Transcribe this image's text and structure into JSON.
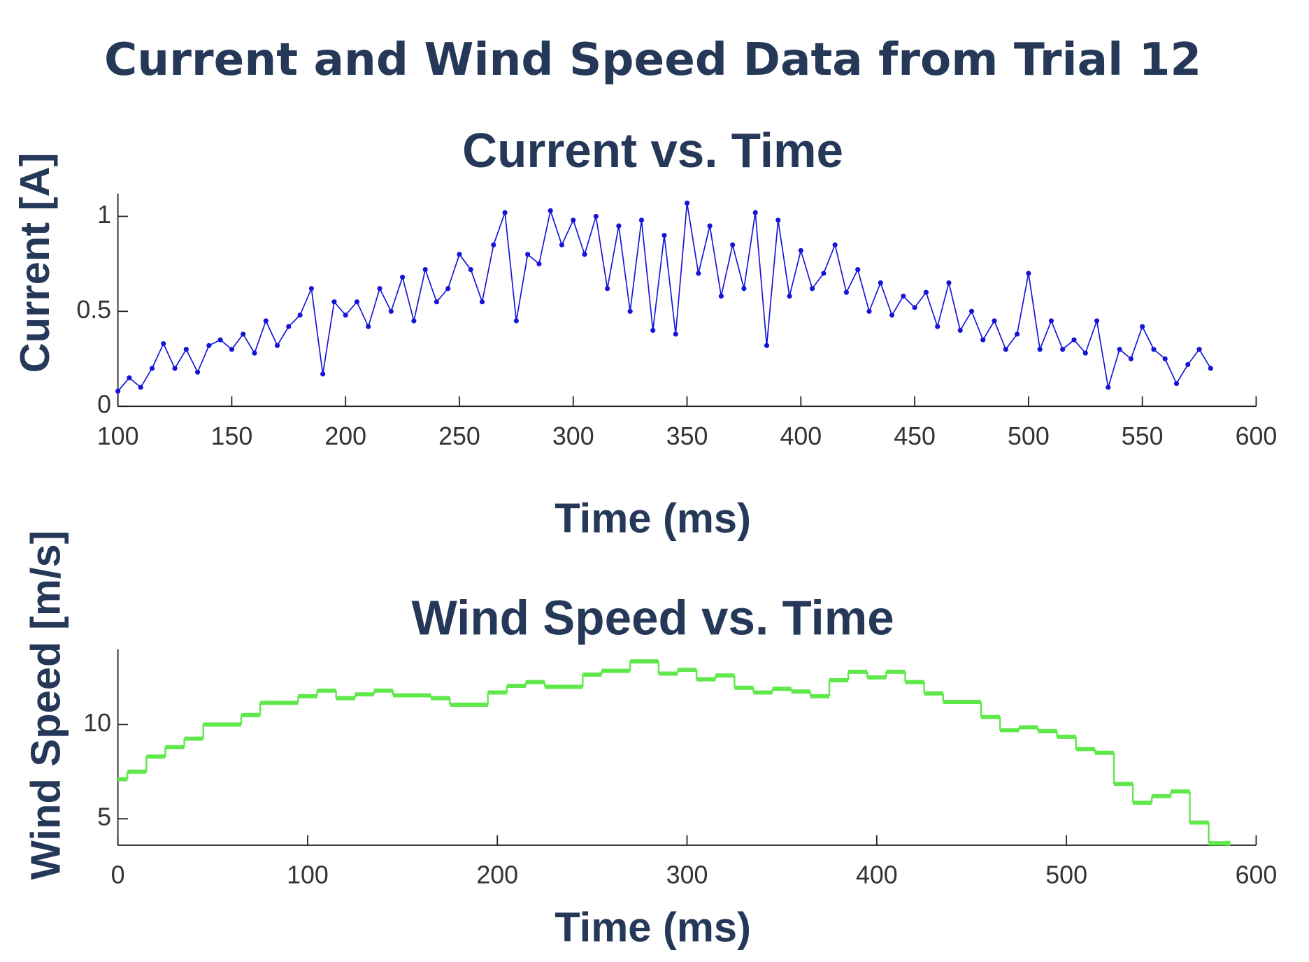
{
  "title": "Current and Wind Speed Data from Trial 12",
  "chart_data": [
    {
      "type": "line",
      "title": "Current vs. Time",
      "x_label": "Time (ms)",
      "y_label": "Current [A]",
      "xlim": [
        100,
        600
      ],
      "xticks": [
        100,
        150,
        200,
        250,
        300,
        350,
        400,
        450,
        500,
        550,
        600
      ],
      "ylim": [
        0,
        1.12
      ],
      "yticks": [
        0,
        0.5,
        1
      ],
      "markers": true,
      "step": false,
      "series": [
        {
          "name": "Current",
          "color": "#1414d8",
          "x": [
            100,
            105,
            110,
            115,
            120,
            125,
            130,
            135,
            140,
            145,
            150,
            155,
            160,
            165,
            170,
            175,
            180,
            185,
            190,
            195,
            200,
            205,
            210,
            215,
            220,
            225,
            230,
            235,
            240,
            245,
            250,
            255,
            260,
            265,
            270,
            275,
            280,
            285,
            290,
            295,
            300,
            305,
            310,
            315,
            320,
            325,
            330,
            335,
            340,
            345,
            350,
            355,
            360,
            365,
            370,
            375,
            380,
            385,
            390,
            395,
            400,
            405,
            410,
            415,
            420,
            425,
            430,
            435,
            440,
            445,
            450,
            455,
            460,
            465,
            470,
            475,
            480,
            485,
            490,
            495,
            500,
            505,
            510,
            515,
            520,
            525,
            530,
            535,
            540,
            545,
            550,
            555,
            560,
            565,
            570,
            575,
            580
          ],
          "values": [
            0.08,
            0.15,
            0.1,
            0.2,
            0.33,
            0.2,
            0.3,
            0.18,
            0.32,
            0.35,
            0.3,
            0.38,
            0.28,
            0.45,
            0.32,
            0.42,
            0.48,
            0.62,
            0.17,
            0.55,
            0.48,
            0.55,
            0.42,
            0.62,
            0.5,
            0.68,
            0.45,
            0.72,
            0.55,
            0.62,
            0.8,
            0.72,
            0.55,
            0.85,
            1.02,
            0.45,
            0.8,
            0.75,
            1.03,
            0.85,
            0.98,
            0.8,
            1.0,
            0.62,
            0.95,
            0.5,
            0.98,
            0.4,
            0.9,
            0.38,
            1.07,
            0.7,
            0.95,
            0.58,
            0.85,
            0.62,
            1.02,
            0.32,
            0.98,
            0.58,
            0.82,
            0.62,
            0.7,
            0.85,
            0.6,
            0.72,
            0.5,
            0.65,
            0.48,
            0.58,
            0.52,
            0.6,
            0.42,
            0.65,
            0.4,
            0.5,
            0.35,
            0.45,
            0.3,
            0.38,
            0.7,
            0.3,
            0.45,
            0.3,
            0.35,
            0.28,
            0.45,
            0.1,
            0.3,
            0.25,
            0.42,
            0.3,
            0.25,
            0.12,
            0.22,
            0.3,
            0.2
          ]
        }
      ]
    },
    {
      "type": "line",
      "title": "Wind Speed vs. Time",
      "x_label": "Time (ms)",
      "y_label": "Wind Speed [m/s]",
      "xlim": [
        0,
        600
      ],
      "xticks": [
        0,
        100,
        200,
        300,
        400,
        500,
        600
      ],
      "ylim": [
        3.6,
        14
      ],
      "yticks": [
        5,
        10
      ],
      "markers": false,
      "step": true,
      "series": [
        {
          "name": "Wind Speed",
          "color": "#5fe84a",
          "x": [
            0,
            5,
            15,
            25,
            35,
            45,
            65,
            75,
            95,
            105,
            115,
            125,
            135,
            145,
            165,
            175,
            195,
            205,
            215,
            225,
            245,
            255,
            270,
            285,
            295,
            305,
            315,
            325,
            335,
            345,
            355,
            365,
            375,
            385,
            395,
            405,
            415,
            425,
            435,
            455,
            465,
            475,
            485,
            495,
            505,
            515,
            525,
            535,
            545,
            555,
            565,
            575,
            585
          ],
          "values": [
            7.1,
            7.5,
            8.3,
            8.8,
            9.25,
            10,
            10.5,
            11.15,
            11.5,
            11.8,
            11.4,
            11.6,
            11.8,
            11.55,
            11.4,
            11.05,
            11.7,
            12.05,
            12.25,
            12.0,
            12.65,
            12.85,
            13.35,
            12.7,
            12.9,
            12.4,
            12.6,
            11.95,
            11.7,
            11.9,
            11.75,
            11.5,
            12.35,
            12.8,
            12.5,
            12.8,
            12.25,
            11.65,
            11.2,
            10.4,
            9.7,
            9.85,
            9.65,
            9.35,
            8.7,
            8.5,
            6.85,
            5.85,
            6.2,
            6.45,
            4.8,
            3.7,
            3.7
          ]
        }
      ]
    }
  ]
}
